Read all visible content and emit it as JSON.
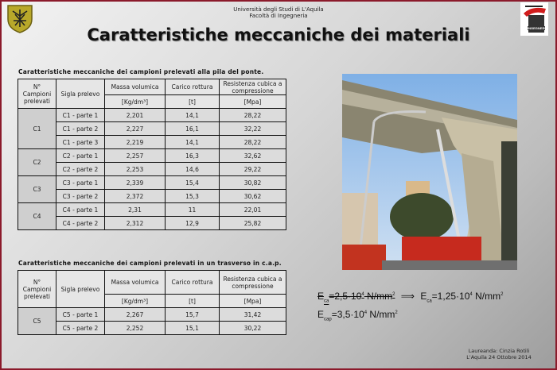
{
  "header": {
    "university": "Università degli Studi di L'Aquila",
    "faculty": "Facoltà di Ingegneria",
    "title": "Caratteristiche meccaniche dei materiali",
    "logo_right_text": "INGEGNERIA"
  },
  "table1": {
    "caption": "Caratteristiche meccaniche dei campioni prelevati alla pila del ponte.",
    "headers": [
      "N° Campioni prelevati",
      "Sigla prelevo",
      "Massa volumica",
      "Carico rottura",
      "Resistenza cubica a compressione"
    ],
    "units": [
      "[Kg/dm³]",
      "[t]",
      "[Mpa]"
    ],
    "groups": [
      {
        "id": "C1",
        "rows": [
          [
            "C1 - parte 1",
            "2,201",
            "14,1",
            "28,22"
          ],
          [
            "C1 - parte 2",
            "2,227",
            "16,1",
            "32,22"
          ],
          [
            "C1 - parte 3",
            "2,219",
            "14,1",
            "28,22"
          ]
        ]
      },
      {
        "id": "C2",
        "rows": [
          [
            "C2 - parte 1",
            "2,257",
            "16,3",
            "32,62"
          ],
          [
            "C2 - parte 2",
            "2,253",
            "14,6",
            "29,22"
          ]
        ]
      },
      {
        "id": "C3",
        "rows": [
          [
            "C3 - parte 1",
            "2,339",
            "15,4",
            "30,82"
          ],
          [
            "C3 - parte 2",
            "2,372",
            "15,3",
            "30,62"
          ]
        ]
      },
      {
        "id": "C4",
        "rows": [
          [
            "C4 - parte 1",
            "2,31",
            "11",
            "22,01"
          ],
          [
            "C4 - parte 2",
            "2,312",
            "12,9",
            "25,82"
          ]
        ]
      }
    ]
  },
  "table2": {
    "caption": "Caratteristiche meccaniche dei campioni prelevati in un trasverso in c.a.p.",
    "headers": [
      "N° Campioni prelevati",
      "Sigla prelevo",
      "Massa volumica",
      "Carico rottura",
      "Resistenza cubica a compressione"
    ],
    "units": [
      "[Kg/dm³]",
      "[t]",
      "[Mpa]"
    ],
    "groups": [
      {
        "id": "C5",
        "rows": [
          [
            "C5 - parte 1",
            "2,267",
            "15,7",
            "31,42"
          ],
          [
            "C5 - parte 2",
            "2,252",
            "15,1",
            "30,22"
          ]
        ]
      }
    ]
  },
  "equations": {
    "eq1_symbol": "E",
    "eq1_sub": "ca",
    "eq1_old": "=2,5·10",
    "eq1_old_exp": "4",
    "eq1_old_unit": " N/mm",
    "eq1_old_unit_exp": "2",
    "eq1_new_symbol": "E",
    "eq1_new_sub": "ca",
    "eq1_new": "=1,25·10",
    "eq1_new_exp": "4",
    "eq1_new_unit": " N/mm",
    "eq1_new_unit_exp": "2",
    "eq2_symbol": "E",
    "eq2_sub": "cap",
    "eq2": "=3,5·10",
    "eq2_exp": "4",
    "eq2_unit": " N/mm",
    "eq2_unit_exp": "2"
  },
  "footer": {
    "author": "Laureanda: Cinzia Rotili",
    "place_date": "L'Aquila 24 Ottobre 2014"
  },
  "colors": {
    "border": "#8b1a2b",
    "logo_red": "#d01c1c"
  }
}
